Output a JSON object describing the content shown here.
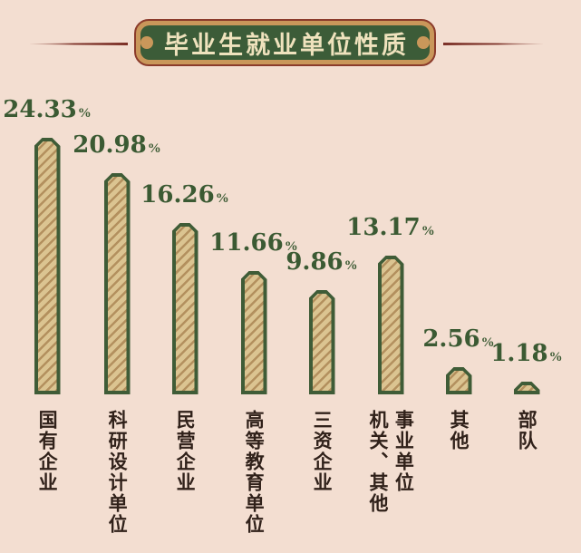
{
  "title": {
    "text": "毕业生就业单位性质"
  },
  "chart_data": {
    "type": "bar",
    "title": "毕业生就业单位性质",
    "categories": [
      "国有企业",
      "科研设计单位",
      "民营企业",
      "高等教育单位",
      "三资企业",
      "事业单位\n机关、其他",
      "其他",
      "部队"
    ],
    "values": [
      24.33,
      20.98,
      16.26,
      11.66,
      9.86,
      13.17,
      2.56,
      1.18
    ],
    "value_labels": [
      "24.33",
      "20.98",
      "16.26",
      "11.66",
      "9.86",
      "13.17",
      "2.56",
      "1.18"
    ],
    "unit": "%",
    "xlabel": "",
    "ylabel": "",
    "ylim": [
      0,
      26
    ],
    "grid": false,
    "legend": null,
    "bar_style": "diagonal-hatch with chamfered top corners",
    "colors": {
      "background": "#f3ded1",
      "bar_fill": "#dbc491",
      "bar_hatch": "#b3905e",
      "bar_border": "#3f5c37",
      "value_text": "#3b5a33",
      "category_text": "#30211a",
      "banner_green": "#3c5c38",
      "banner_frame": "#c9975a",
      "banner_outline": "#8b3b2b",
      "title_text": "#efe2bd",
      "side_line": "#7b2f26"
    }
  }
}
